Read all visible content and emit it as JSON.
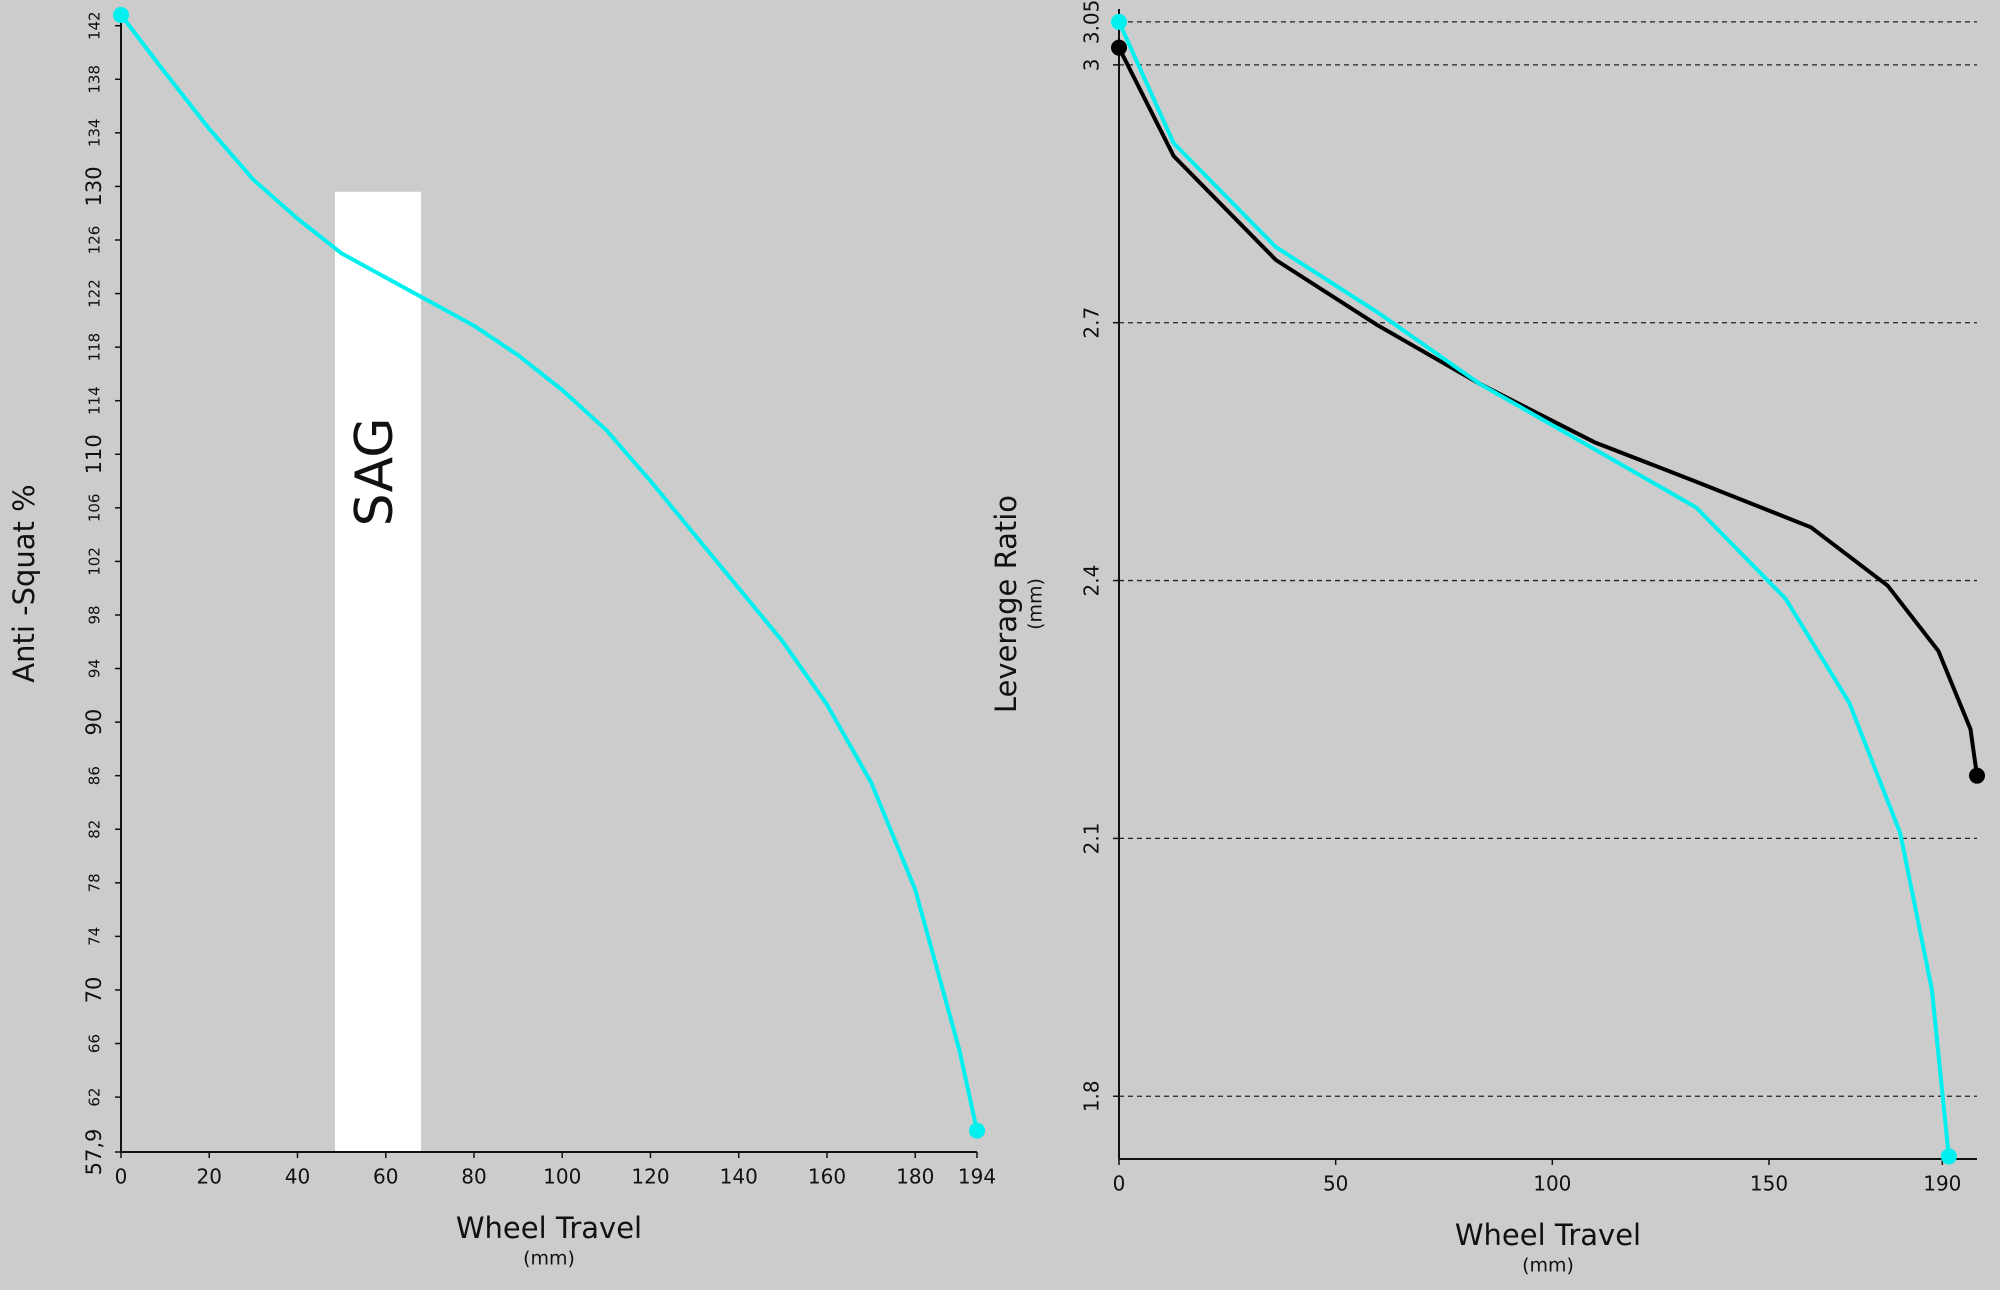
{
  "chart_data": [
    {
      "type": "line",
      "ylabel": "Anti -Squat %",
      "xlabel": "Wheel Travel",
      "xlabel_unit": "(mm)",
      "xlim": [
        0,
        194
      ],
      "ylim": [
        57.9,
        142.8
      ],
      "xticks": [
        0,
        20,
        40,
        60,
        80,
        100,
        120,
        140,
        160,
        180,
        194
      ],
      "yticks": [
        {
          "value": 57.9,
          "label": "57,9"
        },
        62,
        66,
        70,
        74,
        78,
        82,
        86,
        90,
        94,
        98,
        102,
        106,
        110,
        114,
        118,
        122,
        126,
        130,
        134,
        138,
        142
      ],
      "grid": false,
      "sag": {
        "label": "SAG",
        "x": [
          48.5,
          68
        ],
        "top": 129.6,
        "color": "#ffffff"
      },
      "series": [
        {
          "color": "#00f0f0",
          "x": [
            0,
            10,
            20,
            30,
            40,
            50,
            60,
            70,
            80,
            90,
            100,
            110,
            120,
            130,
            140,
            150,
            160,
            170,
            180,
            190,
            194
          ],
          "values": [
            142.8,
            138.5,
            134.3,
            130.5,
            127.6,
            125.0,
            123.2,
            121.4,
            119.6,
            117.4,
            114.8,
            111.8,
            108.0,
            104.0,
            100.0,
            96.0,
            91.3,
            85.5,
            77.5,
            65.5,
            59.5
          ]
        }
      ]
    },
    {
      "type": "line",
      "ylabel": "Leverage Ratio",
      "ylabel_unit": "(mm)",
      "xlabel": "Wheel Travel",
      "xlabel_unit": "(mm)",
      "xlim": [
        0,
        198
      ],
      "ylim": [
        1.727,
        3.065
      ],
      "xticks": [
        0,
        50,
        100,
        150,
        190
      ],
      "yticks": [
        1.8,
        2.1,
        2.4,
        2.7,
        3,
        3.05
      ],
      "grid": true,
      "series": [
        {
          "color": "#000000",
          "x": [
            0,
            12.6,
            36.2,
            59.7,
            83.2,
            109.7,
            133.2,
            159.7,
            177.4,
            189.1,
            196.5,
            198
          ],
          "values": [
            3.02,
            2.894,
            2.773,
            2.697,
            2.629,
            2.561,
            2.515,
            2.462,
            2.394,
            2.318,
            2.227,
            2.173
          ]
        },
        {
          "color": "#00f0f0",
          "x": [
            0,
            12.6,
            36.2,
            59.7,
            83.2,
            109.7,
            133.2,
            153.8,
            168.5,
            180.3,
            187.6,
            191.5
          ],
          "values": [
            3.05,
            2.909,
            2.788,
            2.712,
            2.629,
            2.553,
            2.485,
            2.379,
            2.258,
            2.106,
            1.924,
            1.73
          ]
        }
      ]
    }
  ]
}
